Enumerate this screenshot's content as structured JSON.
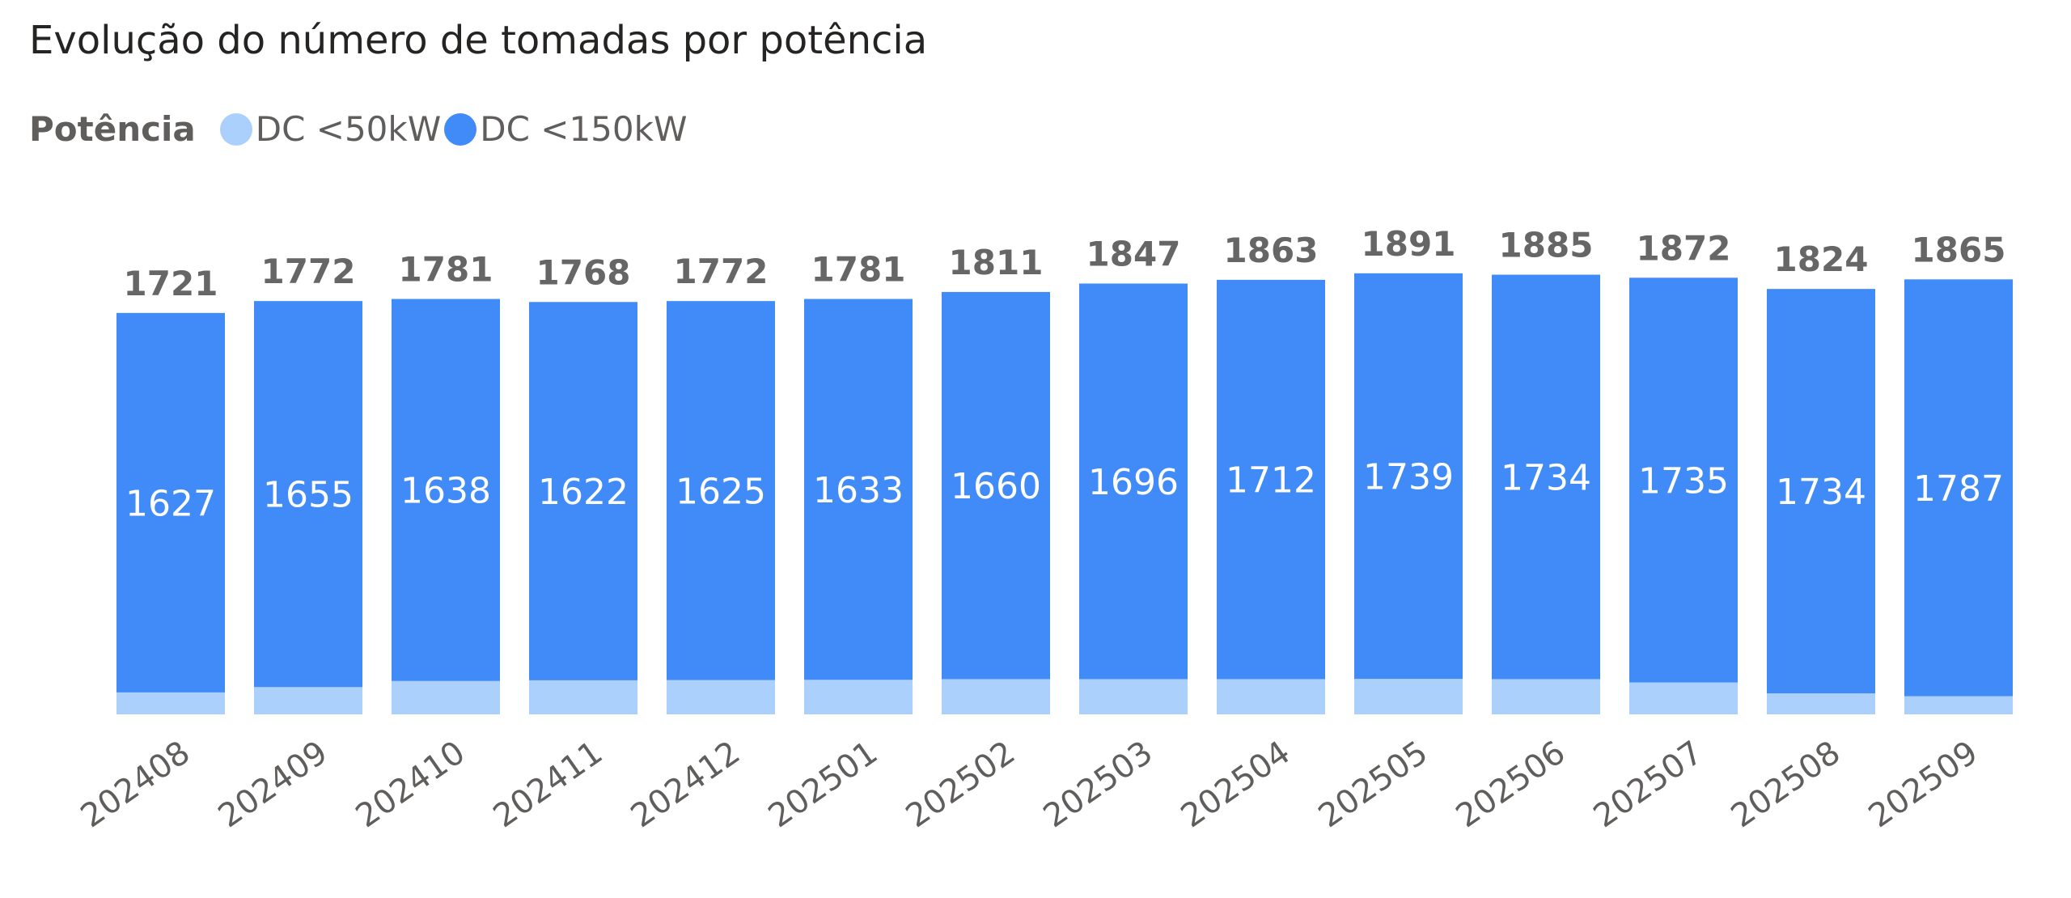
{
  "chart_data": {
    "type": "bar",
    "stacked": true,
    "title": "Evolução do número de tomadas por potência",
    "legend_title": "Potência",
    "legend_position": "top-left",
    "categories": [
      "202408",
      "202409",
      "202410",
      "202411",
      "202412",
      "202501",
      "202502",
      "202503",
      "202504",
      "202505",
      "202506",
      "202507",
      "202508",
      "202509"
    ],
    "series": [
      {
        "name": "DC <50kW",
        "color": "#abd0fb",
        "values": [
          94,
          117,
          143,
          146,
          147,
          148,
          151,
          151,
          151,
          152,
          151,
          137,
          90,
          78
        ]
      },
      {
        "name": "DC <150kW",
        "color": "#418bf8",
        "values": [
          1627,
          1655,
          1638,
          1622,
          1625,
          1633,
          1660,
          1696,
          1712,
          1739,
          1734,
          1735,
          1734,
          1787
        ]
      }
    ],
    "totals": [
      1721,
      1772,
      1781,
      1768,
      1772,
      1781,
      1811,
      1847,
      1863,
      1891,
      1885,
      1872,
      1824,
      1865
    ],
    "xlabel": "",
    "ylabel": "",
    "ylim": [
      0,
      1900
    ],
    "grid": false
  }
}
